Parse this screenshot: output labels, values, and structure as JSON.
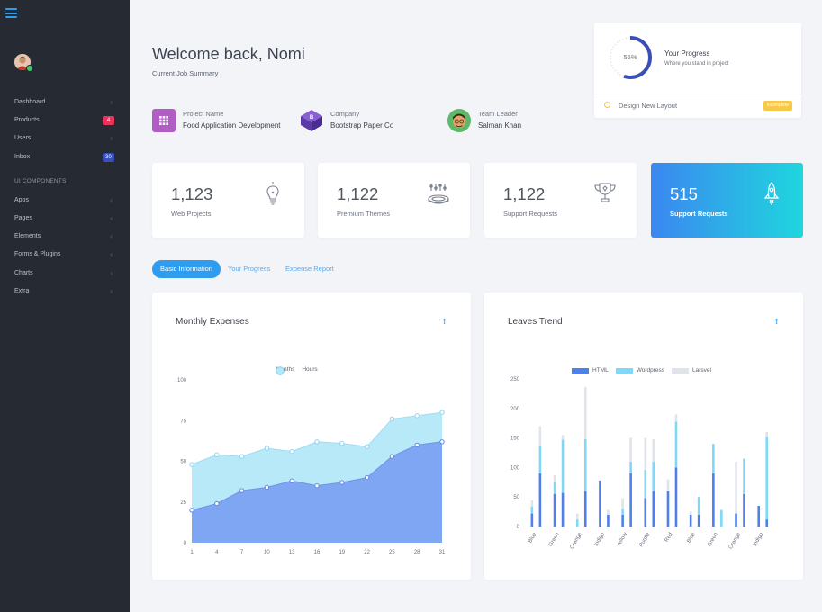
{
  "sidebar": {
    "menu_items": [
      {
        "label": "Dashboard",
        "badge": "",
        "badge_color": ""
      },
      {
        "label": "Products",
        "badge": "4",
        "badge_color": "#e8345a"
      },
      {
        "label": "Users",
        "badge": "",
        "badge_color": ""
      },
      {
        "label": "Inbox",
        "badge": "30",
        "badge_color": "#3b4fb8"
      }
    ],
    "section_title": "UI COMPONENTS",
    "component_items": [
      {
        "label": "Apps"
      },
      {
        "label": "Pages"
      },
      {
        "label": "Elements"
      },
      {
        "label": "Forms & Plugins"
      },
      {
        "label": "Charts"
      },
      {
        "label": "Extra"
      }
    ]
  },
  "header": {
    "welcome": "Welcome back, Nomi",
    "subtitle": "Current Job Summary"
  },
  "job_info": [
    {
      "label": "Project Name",
      "value": "Food Application Development",
      "icon": "grid-icon",
      "color": "#b25cc6"
    },
    {
      "label": "Company",
      "value": "Bootstrap Paper Co",
      "icon": "bootstrap-logo-icon",
      "color": "#6a3fb8"
    },
    {
      "label": "Team Leader",
      "value": "Salman Khan",
      "icon": "team-leader-avatar",
      "color": "#5fb867"
    }
  ],
  "progress": {
    "percent": 55,
    "percent_label": "55%",
    "title": "Your Progress",
    "subtitle": "Where you stand in project",
    "task": "Design New Layout",
    "task_badge": "Incomplete",
    "accent": "#3b4fb8"
  },
  "stats": [
    {
      "value": "1,123",
      "label": "Web Projects",
      "icon": "lightbulb-icon"
    },
    {
      "value": "1,122",
      "label": "Premium Themes",
      "icon": "sliders-platter-icon"
    },
    {
      "value": "1,122",
      "label": "Support Requests",
      "icon": "trophy-icon"
    },
    {
      "value": "515",
      "label": "Support Requests",
      "icon": "rocket-icon"
    }
  ],
  "tabs": [
    {
      "label": "Basic Information",
      "active": true
    },
    {
      "label": "Your Progress",
      "active": false
    },
    {
      "label": "Expense Report",
      "active": false
    }
  ],
  "monthly_expenses": {
    "title": "Monthly Expenses",
    "menu": "⁝",
    "chart_data": {
      "type": "area",
      "x": [
        1,
        4,
        7,
        10,
        13,
        16,
        19,
        22,
        25,
        28,
        31
      ],
      "ylim": [
        0,
        100
      ],
      "yticks": [
        0,
        25,
        50,
        75,
        100
      ],
      "grid": false,
      "legend": "top-center",
      "series": [
        {
          "name": "Months",
          "color": "#7fa6f2",
          "values": [
            20,
            24,
            32,
            34,
            38,
            35,
            37,
            40,
            53,
            60,
            62
          ]
        },
        {
          "name": "Hours",
          "color": "#b3e8f8",
          "values": [
            48,
            54,
            53,
            58,
            56,
            62,
            61,
            59,
            76,
            78,
            80
          ]
        }
      ]
    }
  },
  "leaves_trend": {
    "title": "Leaves Trend",
    "menu": "⁝",
    "chart_data": {
      "type": "bar",
      "stacked": true,
      "categories": [
        "Blue",
        "Green",
        "Orange",
        "Indigo",
        "Yellow",
        "Purple",
        "Red",
        "Blue",
        "Green",
        "Orange",
        "Indigo"
      ],
      "ylim": [
        0,
        250
      ],
      "yticks": [
        0,
        50,
        100,
        150,
        200,
        250
      ],
      "grid": false,
      "legend": "top-center",
      "series": [
        {
          "name": "HTML",
          "color": "#4f7fe8",
          "values": [
            [
              22,
              90
            ],
            [
              55,
              57
            ],
            [
              0,
              60
            ],
            [
              78,
              20
            ],
            [
              20,
              90
            ],
            [
              48,
              60
            ],
            [
              60,
              100
            ],
            [
              20,
              20
            ],
            [
              90,
              0
            ],
            [
              22,
              55
            ],
            [
              35,
              12
            ]
          ]
        },
        {
          "name": "Wordpress",
          "color": "#7fd8f5",
          "values": [
            [
              12,
              46
            ],
            [
              20,
              90
            ],
            [
              12,
              88
            ],
            [
              0,
              0
            ],
            [
              10,
              20
            ],
            [
              48,
              50
            ],
            [
              0,
              78
            ],
            [
              0,
              30
            ],
            [
              50,
              28
            ],
            [
              0,
              60
            ],
            [
              0,
              140
            ]
          ]
        },
        {
          "name": "Larsvel",
          "color": "#dfe3ea",
          "values": [
            [
              10,
              34
            ],
            [
              12,
              8
            ],
            [
              10,
              88
            ],
            [
              0,
              8
            ],
            [
              18,
              40
            ],
            [
              54,
              38
            ],
            [
              20,
              12
            ],
            [
              6,
              0
            ],
            [
              0,
              0
            ],
            [
              88,
              0
            ],
            [
              0,
              8
            ]
          ]
        }
      ]
    }
  }
}
